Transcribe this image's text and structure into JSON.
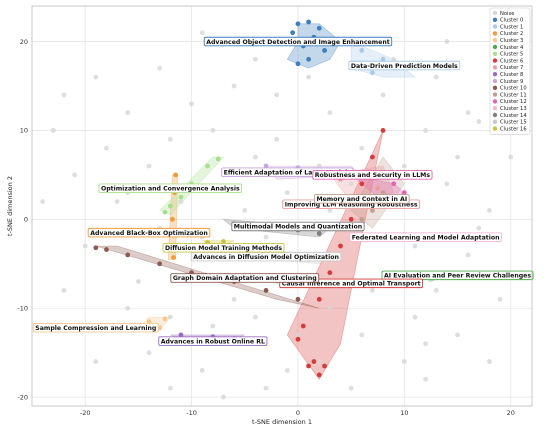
{
  "chart_data": {
    "type": "scatter",
    "xlabel": "t-SNE dimension 1",
    "ylabel": "t-SNE dimension 2",
    "xlim": [
      -25,
      22
    ],
    "ylim": [
      -21,
      24
    ],
    "xticks": [
      -20,
      -10,
      0,
      10,
      20
    ],
    "yticks": [
      -20,
      -10,
      0,
      10,
      20
    ],
    "grid": true,
    "legend_position": "top-right",
    "noise": {
      "name": "Noise",
      "color": "#d6d6d6",
      "points": [
        [
          -22,
          14
        ],
        [
          -19,
          16
        ],
        [
          -16,
          12
        ],
        [
          -13,
          17
        ],
        [
          -9,
          21
        ],
        [
          -4,
          18
        ],
        [
          -2,
          14
        ],
        [
          3,
          12
        ],
        [
          8,
          14
        ],
        [
          13,
          16
        ],
        [
          17,
          11
        ],
        [
          20,
          7
        ],
        [
          14,
          4
        ],
        [
          18,
          1
        ],
        [
          16,
          -4
        ],
        [
          19,
          -9
        ],
        [
          15,
          -13
        ],
        [
          10,
          -16
        ],
        [
          5,
          -19
        ],
        [
          -1,
          -17
        ],
        [
          -5,
          -14
        ],
        [
          -9,
          -17
        ],
        [
          -14,
          -15
        ],
        [
          -18,
          -12
        ],
        [
          -22,
          -8
        ],
        [
          -20,
          -3
        ],
        [
          -17,
          2
        ],
        [
          -21,
          5
        ],
        [
          -14,
          6
        ],
        [
          -12,
          9
        ],
        [
          -7,
          5
        ],
        [
          -5,
          1
        ],
        [
          -3,
          -2
        ],
        [
          -1,
          3
        ],
        [
          2,
          6
        ],
        [
          5,
          4
        ],
        [
          9,
          2
        ],
        [
          11,
          -3
        ],
        [
          7,
          -8
        ],
        [
          3,
          -10
        ],
        [
          -2,
          -7
        ],
        [
          -6,
          -9
        ],
        [
          -10,
          -6
        ],
        [
          -15,
          -7
        ],
        [
          -13,
          -1
        ],
        [
          -11,
          2
        ],
        [
          -8,
          10
        ],
        [
          -2,
          9
        ],
        [
          6,
          8
        ],
        [
          12,
          10
        ],
        [
          15,
          7
        ],
        [
          17,
          -1
        ],
        [
          13,
          -8
        ],
        [
          11,
          -11
        ],
        [
          6,
          -13
        ],
        [
          0,
          -13
        ],
        [
          -4,
          -11
        ],
        [
          -8,
          -12
        ],
        [
          -12,
          -11
        ],
        [
          -16,
          -10
        ],
        [
          -19,
          -16
        ],
        [
          -23,
          -12
        ],
        [
          -24,
          2
        ],
        [
          -23,
          10
        ],
        [
          -18,
          8
        ],
        [
          -10,
          13
        ],
        [
          -6,
          15
        ],
        [
          1,
          16
        ],
        [
          9,
          18
        ],
        [
          14,
          20
        ],
        [
          19,
          14
        ],
        [
          21,
          -6
        ],
        [
          18,
          -16
        ],
        [
          12,
          -18
        ],
        [
          2,
          -16
        ],
        [
          -3,
          -19
        ],
        [
          -7,
          -20
        ],
        [
          -12,
          -19
        ],
        [
          -16,
          3
        ],
        [
          -9,
          -2
        ],
        [
          4,
          -4
        ],
        [
          9,
          -6
        ],
        [
          14,
          -2
        ],
        [
          16,
          12
        ],
        [
          -4,
          7
        ],
        [
          3,
          1
        ],
        [
          -2,
          -4
        ],
        [
          7,
          -2
        ],
        [
          1,
          -1
        ],
        [
          -6,
          -3
        ],
        [
          10,
          6
        ],
        [
          12,
          -14
        ]
      ]
    },
    "clusters": [
      {
        "id": 0,
        "name": "Cluster 0",
        "color": "#3c7fbd",
        "label": "Advanced Object Detection and Image Enhancement",
        "label_at": [
          0,
          20
        ],
        "hull": [
          [
            0,
            22
          ],
          [
            2,
            22
          ],
          [
            4,
            20
          ],
          [
            3,
            18
          ],
          [
            1,
            17
          ],
          [
            -1,
            18
          ],
          [
            0,
            20
          ]
        ],
        "points": [
          [
            0,
            22
          ],
          [
            1,
            22.2
          ],
          [
            2,
            21.5
          ],
          [
            3,
            20
          ],
          [
            2.5,
            19
          ],
          [
            1,
            18
          ],
          [
            0,
            17.5
          ],
          [
            0.5,
            19.5
          ],
          [
            1.5,
            20.5
          ],
          [
            -0.5,
            21
          ]
        ]
      },
      {
        "id": 1,
        "name": "Cluster 1",
        "color": "#a9c9ea",
        "label": "Data-Driven Prediction Models",
        "label_at": [
          10,
          17.3
        ],
        "hull": [
          [
            5,
            20
          ],
          [
            9,
            18
          ],
          [
            11,
            16
          ],
          [
            8,
            16
          ],
          [
            5,
            17
          ]
        ],
        "points": [
          [
            6,
            19
          ],
          [
            8,
            18
          ],
          [
            9,
            17
          ],
          [
            7,
            16.5
          ]
        ]
      },
      {
        "id": 2,
        "name": "Cluster 2",
        "color": "#f39a3a",
        "label": "Advanced Black-Box Optimization",
        "label_at": [
          -14,
          -1.5
        ],
        "hull": [
          [
            -11.8,
            5
          ],
          [
            -11.3,
            5
          ],
          [
            -11.5,
            -4.5
          ],
          [
            -12.2,
            -4.5
          ]
        ],
        "points": [
          [
            -11.5,
            5
          ],
          [
            -11.6,
            3
          ],
          [
            -11.8,
            0
          ],
          [
            -12,
            -3
          ],
          [
            -11.7,
            -4.3
          ]
        ]
      },
      {
        "id": 3,
        "name": "Cluster 3",
        "color": "#f6c88c",
        "label": "Sample Compression and Learning",
        "label_at": [
          -19,
          -12.2
        ],
        "hull": [
          [
            -14,
            -11
          ],
          [
            -12,
            -11
          ],
          [
            -13,
            -12.5
          ],
          [
            -15,
            -12.2
          ]
        ],
        "points": [
          [
            -14,
            -11.5
          ],
          [
            -12.5,
            -11.2
          ],
          [
            -13,
            -12.2
          ]
        ]
      },
      {
        "id": 4,
        "name": "Cluster 4",
        "color": "#4dab4d",
        "label": "AI Evaluation and Peer Review Challenges",
        "label_at": [
          15,
          -6.3
        ],
        "hull": [
          [
            11,
            -6
          ],
          [
            14,
            -6.2
          ],
          [
            12.5,
            -7
          ]
        ],
        "points": [
          [
            11.5,
            -6.2
          ],
          [
            13.5,
            -6.5
          ]
        ]
      },
      {
        "id": 5,
        "name": "Cluster 5",
        "color": "#a8df8f",
        "label": "Optimization and Convergence Analysis",
        "label_at": [
          -12,
          3.5
        ],
        "hull": [
          [
            -8,
            7
          ],
          [
            -7,
            7
          ],
          [
            -12,
            0.5
          ],
          [
            -13,
            1
          ]
        ],
        "points": [
          [
            -7.5,
            6.8
          ],
          [
            -8.5,
            6
          ],
          [
            -10,
            4
          ],
          [
            -11,
            2.5
          ],
          [
            -12,
            1.5
          ],
          [
            -12.5,
            0.8
          ]
        ]
      },
      {
        "id": 6,
        "name": "Cluster 6",
        "color": "#d63b3b",
        "label": "Causal Inference and Optimal Transport",
        "label_at": [
          5,
          -7.2
        ],
        "hull": [
          [
            8,
            10
          ],
          [
            -1,
            -13
          ],
          [
            2,
            -18
          ],
          [
            4,
            -14
          ]
        ],
        "points": [
          [
            8,
            10
          ],
          [
            7,
            7
          ],
          [
            6,
            4
          ],
          [
            5,
            0
          ],
          [
            4,
            -3
          ],
          [
            3,
            -6
          ],
          [
            2,
            -9
          ],
          [
            0.5,
            -12
          ],
          [
            0,
            -13.5
          ],
          [
            1,
            -16.5
          ],
          [
            2,
            -17.5
          ],
          [
            1.5,
            -16
          ],
          [
            2.5,
            -16.5
          ]
        ]
      },
      {
        "id": 7,
        "name": "Cluster 7",
        "color": "#ea9da0",
        "label": "Improving LLM Reasoning Robustness",
        "label_at": [
          5,
          1.7
        ],
        "hull": [
          [
            3,
            5
          ],
          [
            8,
            6
          ],
          [
            9,
            3
          ],
          [
            5,
            2
          ]
        ],
        "points": [
          [
            4,
            4.5
          ],
          [
            6,
            5
          ],
          [
            7.5,
            3.5
          ]
        ]
      },
      {
        "id": 8,
        "name": "Cluster 8",
        "color": "#9a6cc1",
        "label": "Advances in Robust Online RL",
        "label_at": [
          -8,
          -13.7
        ],
        "hull": [
          [
            -12,
            -13
          ],
          [
            -5,
            -13
          ],
          [
            -7,
            -14
          ],
          [
            -10,
            -14
          ]
        ],
        "points": [
          [
            -11,
            -13
          ],
          [
            -8,
            -13.2
          ],
          [
            -6,
            -13.4
          ]
        ]
      },
      {
        "id": 9,
        "name": "Cluster 9",
        "color": "#c6a5dc",
        "label": "Efficient Adaptation of Large Models",
        "label_at": [
          -1,
          5.3
        ],
        "hull": [
          [
            -3,
            6
          ],
          [
            5,
            6
          ],
          [
            6,
            5
          ],
          [
            -2,
            4.5
          ]
        ],
        "points": [
          [
            -3,
            6
          ],
          [
            0,
            5.8
          ],
          [
            3,
            5.5
          ],
          [
            5,
            5.2
          ]
        ]
      },
      {
        "id": 10,
        "name": "Cluster 10",
        "color": "#8c5a4f",
        "label": "Graph Domain Adaptation and Clustering",
        "label_at": [
          -5,
          -6.6
        ],
        "hull": [
          [
            -19,
            -3
          ],
          [
            -17,
            -3
          ],
          [
            2,
            -10
          ],
          [
            -2,
            -9
          ]
        ],
        "points": [
          [
            -19,
            -3.2
          ],
          [
            -18,
            -3.4
          ],
          [
            -16,
            -4
          ],
          [
            -13,
            -5
          ],
          [
            -10,
            -6
          ],
          [
            -6,
            -7
          ],
          [
            -3,
            -8
          ],
          [
            0,
            -9
          ]
        ]
      },
      {
        "id": 11,
        "name": "Cluster 11",
        "color": "#c3a08e",
        "label": "Memory and Context in AI",
        "label_at": [
          6,
          2.3
        ],
        "hull": [
          [
            8,
            7
          ],
          [
            10,
            4
          ],
          [
            7,
            -1
          ],
          [
            5,
            1
          ]
        ],
        "points": [
          [
            9,
            5
          ],
          [
            8,
            3
          ],
          [
            7,
            1
          ],
          [
            6,
            0
          ]
        ]
      },
      {
        "id": 12,
        "name": "Cluster 12",
        "color": "#e364b6",
        "label": "Robustness and Security in LLMs",
        "label_at": [
          7,
          5
        ],
        "hull": [
          [
            5,
            5
          ],
          [
            9,
            4
          ],
          [
            10,
            3
          ],
          [
            8,
            2
          ]
        ],
        "points": [
          [
            6,
            5
          ],
          [
            9,
            4
          ],
          [
            10,
            3
          ]
        ]
      },
      {
        "id": 13,
        "name": "Cluster 13",
        "color": "#f3b6d8",
        "label": "Federated Learning and Model Adaptation",
        "label_at": [
          12,
          -2
        ],
        "hull": [
          [
            9,
            -1.5
          ],
          [
            13,
            -1.7
          ],
          [
            11,
            -2.4
          ]
        ],
        "points": [
          [
            10,
            -1.7
          ],
          [
            12,
            -2
          ]
        ]
      },
      {
        "id": 14,
        "name": "Cluster 14",
        "color": "#7f7f7f",
        "label": "Multimodal Models and Quantization",
        "label_at": [
          0,
          -0.8
        ],
        "hull": [
          [
            -7,
            0
          ],
          [
            3,
            -1
          ],
          [
            2,
            -2
          ],
          [
            -6,
            -1
          ]
        ],
        "points": [
          [
            -6,
            -0.5
          ],
          [
            0,
            -1.2
          ],
          [
            2,
            -1.6
          ]
        ]
      },
      {
        "id": 15,
        "name": "Cluster 15",
        "color": "#c8c8c8",
        "label": "Advances in Diffusion Model Optimization",
        "label_at": [
          -3,
          -4.2
        ],
        "hull": [
          [
            -9,
            -3
          ],
          [
            3,
            -4
          ],
          [
            2,
            -5
          ],
          [
            -8,
            -4
          ]
        ],
        "points": [
          [
            -8,
            -3.5
          ],
          [
            -3,
            -4
          ],
          [
            1,
            -4.5
          ]
        ]
      },
      {
        "id": 16,
        "name": "Cluster 16",
        "color": "#c9c441",
        "label": "Diffusion Model Training Methods",
        "label_at": [
          -7,
          -3.2
        ],
        "hull": [
          [
            -9,
            -2.4
          ],
          [
            -6,
            -2.4
          ],
          [
            -7,
            -3.2
          ]
        ],
        "points": [
          [
            -8.5,
            -2.6
          ],
          [
            -7,
            -2.5
          ],
          [
            -6.5,
            -2.9
          ]
        ]
      }
    ]
  }
}
